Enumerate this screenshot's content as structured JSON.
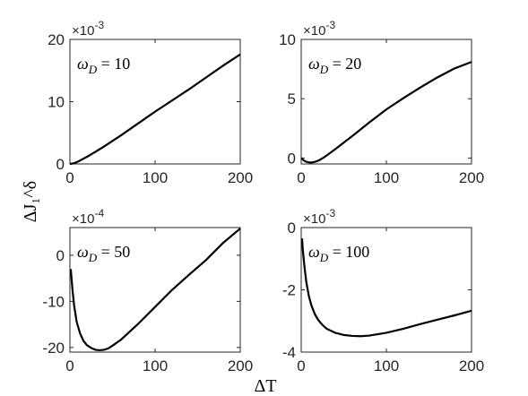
{
  "chart_data": [
    {
      "type": "line",
      "annotation": "ω_D = 10",
      "exponent": "×10^-3",
      "xlim": [
        0,
        200
      ],
      "ylim": [
        0,
        20
      ],
      "xticks": [
        "0",
        "100",
        "200"
      ],
      "yticks": [
        "0",
        "10",
        "20"
      ],
      "series": [
        {
          "x": [
            0,
            5,
            10,
            20,
            30,
            40,
            50,
            60,
            80,
            100,
            120,
            140,
            160,
            180,
            200
          ],
          "y": [
            0,
            0.12,
            0.42,
            1.15,
            1.95,
            2.8,
            3.7,
            4.6,
            6.5,
            8.4,
            10.2,
            12.0,
            13.9,
            15.8,
            17.6
          ]
        }
      ]
    },
    {
      "type": "line",
      "annotation": "ω_D = 20",
      "exponent": "×10^-3",
      "xlim": [
        0,
        200
      ],
      "ylim": [
        -0.5,
        10
      ],
      "xticks": [
        "0",
        "100",
        "200"
      ],
      "yticks": [
        "0",
        "5",
        "10"
      ],
      "series": [
        {
          "x": [
            0,
            3,
            6,
            10,
            14,
            18,
            22,
            26,
            30,
            40,
            50,
            60,
            80,
            100,
            120,
            140,
            160,
            180,
            200
          ],
          "y": [
            0,
            -0.2,
            -0.32,
            -0.38,
            -0.36,
            -0.28,
            -0.15,
            0.02,
            0.22,
            0.75,
            1.3,
            1.85,
            3.0,
            4.1,
            5.05,
            5.95,
            6.8,
            7.55,
            8.1
          ]
        }
      ]
    },
    {
      "type": "line",
      "annotation": "ω_D = 50",
      "exponent": "×10^-4",
      "xlim": [
        0,
        200
      ],
      "ylim": [
        -21,
        6
      ],
      "xticks": [
        "0",
        "100",
        "200"
      ],
      "yticks": [
        "-20",
        "-10",
        "0"
      ],
      "series": [
        {
          "x": [
            1,
            3,
            5,
            8,
            12,
            16,
            20,
            25,
            30,
            35,
            40,
            45,
            50,
            60,
            80,
            100,
            120,
            140,
            160,
            180,
            200
          ],
          "y": [
            -3,
            -7.5,
            -11,
            -14.5,
            -17,
            -18.6,
            -19.5,
            -20.1,
            -20.5,
            -20.6,
            -20.5,
            -20.2,
            -19.6,
            -18.3,
            -14.9,
            -11.2,
            -7.5,
            -4.2,
            -1.0,
            2.7,
            5.8
          ]
        }
      ]
    },
    {
      "type": "line",
      "annotation": "ω_D = 100",
      "exponent": "×10^-3",
      "xlim": [
        0,
        200
      ],
      "ylim": [
        -4,
        0
      ],
      "xticks": [
        "0",
        "100",
        "200"
      ],
      "yticks": [
        "-4",
        "-2",
        "0"
      ],
      "series": [
        {
          "x": [
            1,
            2,
            4,
            6,
            9,
            12,
            16,
            20,
            25,
            30,
            40,
            50,
            60,
            70,
            80,
            100,
            120,
            140,
            160,
            180,
            200
          ],
          "y": [
            -0.35,
            -0.75,
            -1.3,
            -1.75,
            -2.2,
            -2.5,
            -2.78,
            -2.97,
            -3.13,
            -3.25,
            -3.38,
            -3.45,
            -3.48,
            -3.49,
            -3.47,
            -3.38,
            -3.25,
            -3.1,
            -2.96,
            -2.82,
            -2.67
          ]
        }
      ]
    }
  ],
  "xlabel": "ΔT",
  "ylabel": "ΔJ₁^δ"
}
